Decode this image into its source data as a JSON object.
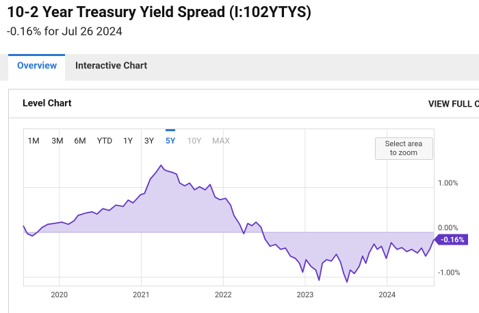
{
  "header": {
    "title": "10-2 Year Treasury Yield Spread (I:102YTYS)",
    "subtitle": "-0.16% for Jul 26 2024"
  },
  "tabs": [
    {
      "label": "Overview",
      "active": true
    },
    {
      "label": "Interactive Chart",
      "active": false
    }
  ],
  "panel": {
    "title": "Level Chart",
    "action": "VIEW FULL C"
  },
  "chart_data": {
    "type": "area",
    "range_buttons": [
      {
        "label": "1M",
        "state": "normal"
      },
      {
        "label": "3M",
        "state": "normal"
      },
      {
        "label": "6M",
        "state": "normal"
      },
      {
        "label": "YTD",
        "state": "normal"
      },
      {
        "label": "1Y",
        "state": "normal"
      },
      {
        "label": "3Y",
        "state": "normal"
      },
      {
        "label": "5Y",
        "state": "selected"
      },
      {
        "label": "10Y",
        "state": "disabled"
      },
      {
        "label": "MAX",
        "state": "disabled"
      }
    ],
    "zoom_hint": [
      "Select area",
      "to zoom"
    ],
    "x": [
      2019.56,
      2019.61,
      2019.67,
      2019.73,
      2019.79,
      2019.86,
      2019.94,
      2020.03,
      2020.11,
      2020.18,
      2020.23,
      2020.32,
      2020.4,
      2020.46,
      2020.53,
      2020.61,
      2020.69,
      2020.78,
      2020.84,
      2020.9,
      2020.99,
      2021.04,
      2021.11,
      2021.18,
      2021.24,
      2021.28,
      2021.32,
      2021.38,
      2021.43,
      2021.47,
      2021.53,
      2021.59,
      2021.65,
      2021.71,
      2021.78,
      2021.84,
      2021.9,
      2021.96,
      2022.03,
      2022.09,
      2022.13,
      2022.2,
      2022.25,
      2022.3,
      2022.35,
      2022.4,
      2022.46,
      2022.51,
      2022.57,
      2022.64,
      2022.7,
      2022.76,
      2022.82,
      2022.88,
      2022.93,
      2022.97,
      2023.01,
      2023.07,
      2023.13,
      2023.17,
      2023.21,
      2023.26,
      2023.32,
      2023.38,
      2023.43,
      2023.47,
      2023.51,
      2023.55,
      2023.6,
      2023.66,
      2023.7,
      2023.74,
      2023.78,
      2023.84,
      2023.88,
      2023.93,
      2023.99,
      2024.05,
      2024.12,
      2024.18,
      2024.24,
      2024.3,
      2024.37,
      2024.42,
      2024.47,
      2024.52,
      2024.57
    ],
    "series": [
      {
        "color": "#6236c4",
        "fill": "#dcd3f2",
        "values": [
          0.15,
          -0.03,
          -0.08,
          0,
          0.11,
          0.18,
          0.2,
          0.23,
          0.18,
          0.26,
          0.38,
          0.43,
          0.46,
          0.41,
          0.53,
          0.49,
          0.61,
          0.58,
          0.72,
          0.66,
          0.84,
          0.87,
          1.19,
          1.34,
          1.5,
          1.4,
          1.37,
          1.34,
          1.3,
          1.1,
          1.04,
          1.1,
          0.95,
          1.02,
          0.95,
          1.07,
          0.79,
          0.73,
          0.76,
          0.61,
          0.38,
          0.18,
          -0.03,
          0.2,
          0.15,
          0.23,
          0.12,
          -0.15,
          -0.31,
          -0.27,
          -0.38,
          -0.35,
          -0.53,
          -0.58,
          -0.69,
          -0.89,
          -0.61,
          -0.76,
          -0.84,
          -1.07,
          -0.69,
          -0.61,
          -0.64,
          -0.49,
          -0.66,
          -0.92,
          -1.11,
          -0.84,
          -0.92,
          -0.76,
          -0.53,
          -0.69,
          -0.46,
          -0.26,
          -0.38,
          -0.31,
          -0.58,
          -0.23,
          -0.38,
          -0.34,
          -0.43,
          -0.38,
          -0.46,
          -0.35,
          -0.53,
          -0.38,
          -0.16
        ]
      }
    ],
    "current": {
      "value": -0.16,
      "label": "-0.16%"
    },
    "xlim": [
      2019.56,
      2024.57
    ],
    "xticks": [
      2020,
      2021,
      2022,
      2023,
      2024
    ],
    "ylim": [
      -1.19,
      2.32
    ],
    "yticks": [
      {
        "value": 1,
        "label": "1.00%"
      },
      {
        "value": 0,
        "label": "0.00%"
      },
      {
        "value": -1,
        "label": "-1.00%"
      }
    ],
    "grid": true
  }
}
